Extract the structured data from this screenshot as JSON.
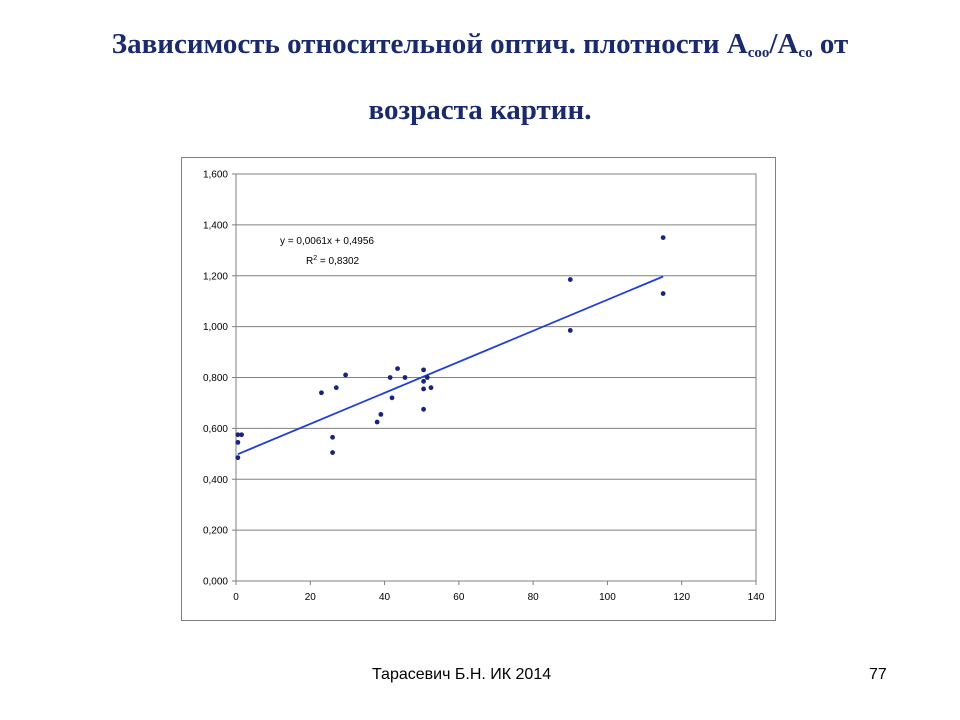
{
  "slide": {
    "title_line1_main": "Зависимость относительной  оптич. плотности A",
    "title_sub1": "coo",
    "title_slash": "/A",
    "title_sub2": "co",
    "title_end": " от",
    "title_line2": "возраста картин.",
    "footer_author": "Тарасевич Б.Н.  ИК 2014",
    "footer_page": "77"
  },
  "chart_data": {
    "type": "scatter",
    "title": "",
    "xlabel": "",
    "ylabel": "",
    "xlim": [
      0,
      140
    ],
    "ylim": [
      0,
      1.6
    ],
    "x_ticks": [
      "0",
      "20",
      "40",
      "60",
      "80",
      "100",
      "120",
      "140"
    ],
    "y_ticks": [
      "0,000",
      "0,200",
      "0,400",
      "0,600",
      "0,800",
      "1,000",
      "1,200",
      "1,400",
      "1,600"
    ],
    "grid": "horizontal",
    "point_color": "#1a237e",
    "trend_color": "#1f3fd6",
    "points": [
      [
        0.5,
        0.485
      ],
      [
        0.5,
        0.545
      ],
      [
        0.5,
        0.575
      ],
      [
        1.5,
        0.575
      ],
      [
        23,
        0.74
      ],
      [
        26,
        0.565
      ],
      [
        26,
        0.505
      ],
      [
        27,
        0.76
      ],
      [
        29.5,
        0.81
      ],
      [
        38,
        0.625
      ],
      [
        39,
        0.655
      ],
      [
        41.5,
        0.8
      ],
      [
        42,
        0.72
      ],
      [
        43.5,
        0.835
      ],
      [
        45.5,
        0.8
      ],
      [
        50.5,
        0.83
      ],
      [
        50.5,
        0.785
      ],
      [
        50.5,
        0.755
      ],
      [
        50.5,
        0.675
      ],
      [
        51.5,
        0.8
      ],
      [
        52.5,
        0.76
      ],
      [
        90,
        1.185
      ],
      [
        90,
        0.985
      ],
      [
        115,
        1.35
      ],
      [
        115,
        1.13
      ]
    ],
    "trendline": {
      "x_start": 0.5,
      "x_end": 115,
      "slope": 0.0061,
      "intercept": 0.4956
    },
    "annotations": {
      "equation": "y = 0,0061x + 0,4956",
      "r2_prefix": "R",
      "r2_exp": "2",
      "r2_rest": " = 0,8302"
    }
  }
}
